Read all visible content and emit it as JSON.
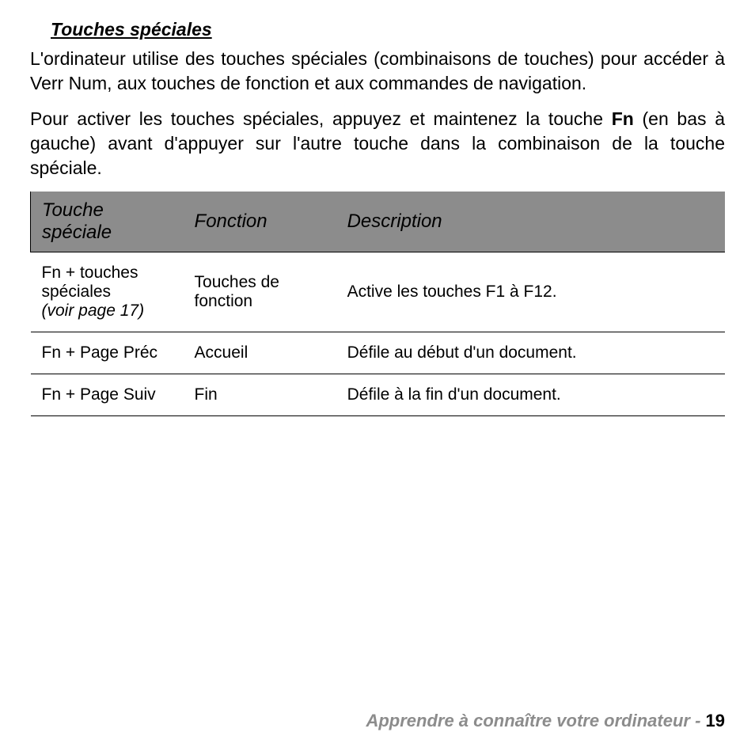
{
  "heading": "Touches spéciales",
  "paragraphs": {
    "p1": "L'ordinateur utilise des touches spéciales (combinaisons de touches) pour accéder à Verr Num, aux touches de fonction et aux commandes de navigation.",
    "p2a": "Pour activer les touches spéciales, appuyez et maintenez la touche ",
    "p2_bold": "Fn",
    "p2b": " (en bas à gauche) avant d'appuyer sur l'autre touche dans la combinaison de la touche spéciale."
  },
  "table": {
    "headers": {
      "c1a": "Touche",
      "c1b": "spéciale",
      "c2": "Fonction",
      "c3": "Description"
    },
    "rows": [
      {
        "c1_main": "Fn + touches spéciales",
        "c1_note": "(voir page 17)",
        "c2": "Touches de fonction",
        "c3": "Active les touches F1 à F12."
      },
      {
        "c1_main": "Fn + Page Préc",
        "c1_note": "",
        "c2": "Accueil",
        "c3": "Défile au début d'un document."
      },
      {
        "c1_main": "Fn + Page Suiv",
        "c1_note": "",
        "c2": "Fin",
        "c3": "Défile à la fin d'un document."
      }
    ]
  },
  "footer": {
    "title": "Apprendre à connaître votre ordinateur -  ",
    "page": "19"
  }
}
